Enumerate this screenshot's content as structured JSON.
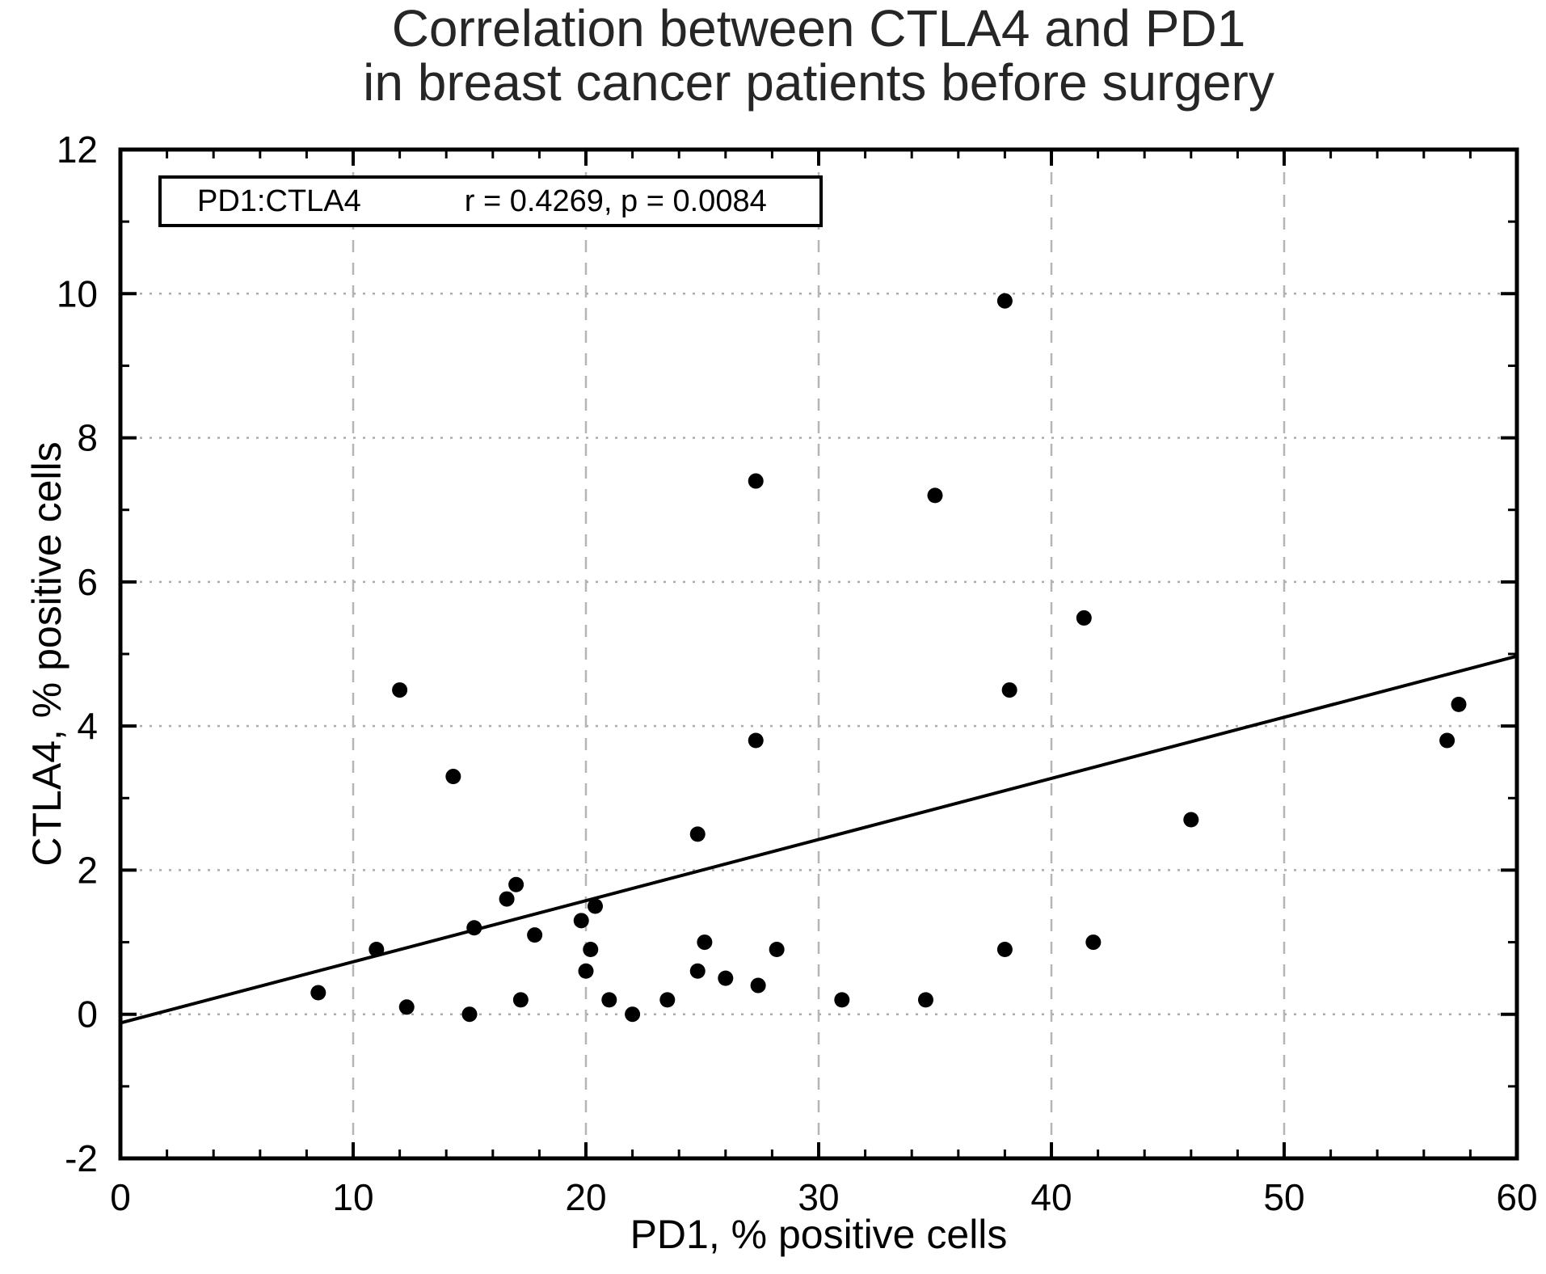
{
  "chart_data": {
    "type": "scatter",
    "title_line1": "Correlation between CTLA4 and PD1",
    "title_line2": "in breast cancer patients before surgery",
    "xlabel": "PD1, % positive cells",
    "ylabel": "CTLA4, % positive cells",
    "xlim": [
      0,
      60
    ],
    "ylim": [
      -2,
      12
    ],
    "x_major_ticks": [
      0,
      10,
      20,
      30,
      40,
      50,
      60
    ],
    "x_tick_labels": [
      "0",
      "10",
      "20",
      "30",
      "40",
      "50",
      "60"
    ],
    "x_minor_step": 2,
    "y_major_ticks": [
      -2,
      0,
      2,
      4,
      6,
      8,
      10,
      12
    ],
    "y_tick_labels": [
      "-2",
      "0",
      "2",
      "4",
      "6",
      "8",
      "10",
      "12"
    ],
    "y_minor_step": 1,
    "x_gridlines": [
      10,
      20,
      30,
      40,
      50
    ],
    "y_gridlines": [
      0,
      2,
      4,
      6,
      8,
      10
    ],
    "grid": true,
    "legend": {
      "position": "top-left",
      "series_label": "PD1:CTLA4",
      "stats_label": "r = 0.4269, p = 0.0084"
    },
    "regression_line": {
      "x1": 0,
      "y1": -0.12,
      "x2": 60,
      "y2": 4.97
    },
    "points": [
      [
        8.5,
        0.3
      ],
      [
        11,
        0.9
      ],
      [
        12,
        4.5
      ],
      [
        12.3,
        0.1
      ],
      [
        14.3,
        3.3
      ],
      [
        15,
        0.0
      ],
      [
        15.2,
        1.2
      ],
      [
        16.6,
        1.6
      ],
      [
        17,
        1.8
      ],
      [
        17.2,
        0.2
      ],
      [
        17.8,
        1.1
      ],
      [
        19.8,
        1.3
      ],
      [
        20,
        0.6
      ],
      [
        20.2,
        0.9
      ],
      [
        20.4,
        1.5
      ],
      [
        21,
        0.2
      ],
      [
        22,
        0.0
      ],
      [
        23.5,
        0.2
      ],
      [
        24.8,
        2.5
      ],
      [
        24.8,
        0.6
      ],
      [
        25.1,
        1.0
      ],
      [
        26,
        0.5
      ],
      [
        27.3,
        7.4
      ],
      [
        27.3,
        3.8
      ],
      [
        27.4,
        0.4
      ],
      [
        28.2,
        0.9
      ],
      [
        31,
        0.2
      ],
      [
        34.6,
        0.2
      ],
      [
        35,
        7.2
      ],
      [
        38,
        9.9
      ],
      [
        38.2,
        4.5
      ],
      [
        38,
        0.9
      ],
      [
        41.4,
        5.5
      ],
      [
        41.8,
        1.0
      ],
      [
        46,
        2.7
      ],
      [
        57,
        3.8
      ],
      [
        57.5,
        4.3
      ]
    ],
    "colors": {
      "marker": "#000000",
      "regression_line": "#000000",
      "grid_horizontal": "#ababab",
      "grid_vertical": "#b5b5b5",
      "axis": "#000000",
      "title": "#262626",
      "background": "#ffffff"
    }
  }
}
